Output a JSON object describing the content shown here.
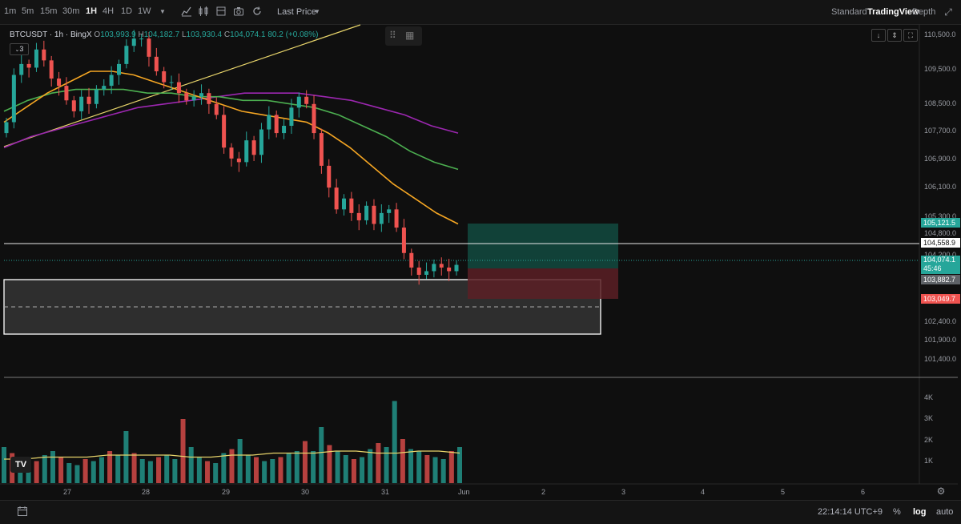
{
  "toolbar": {
    "timeframes": [
      "1m",
      "5m",
      "15m",
      "30m",
      "1H",
      "4H",
      "1D",
      "1W"
    ],
    "active_timeframe": "1H",
    "price_mode": "Last Price",
    "views": {
      "standard": "Standard",
      "tradingview": "TradingView",
      "depth": "Depth"
    }
  },
  "legend": {
    "symbol": "BTCUSDT · 1h · BingX",
    "open_key": "O",
    "open": "103,993.9",
    "high_key": "H",
    "high": "104,182.7",
    "low_key": "L",
    "low": "103,930.4",
    "close_key": "C",
    "close": "104,074.1",
    "change": "80.2 (+0.08%)",
    "indicator_count": "3"
  },
  "price_axis": {
    "labels": [
      "110,500.0",
      "109,500.0",
      "108,500.0",
      "107,700.0",
      "106,900.0",
      "106,100.0",
      "105,300.0",
      "104,800.0",
      "104,200.0",
      "102,400.0",
      "101,900.0",
      "101,400.0"
    ]
  },
  "price_tags": {
    "target": "105,121.5",
    "level": "104,558.9",
    "last": "104,074.1",
    "countdown": "45:46",
    "entry": "103,882.7",
    "stop": "103,049.7"
  },
  "volume_axis": {
    "labels": [
      "4K",
      "3K",
      "2K",
      "1K"
    ]
  },
  "time_axis": {
    "labels": [
      "27",
      "28",
      "29",
      "30",
      "31",
      "Jun",
      "2",
      "3",
      "4",
      "5",
      "6"
    ]
  },
  "bottom_bar": {
    "clock": "22:14:14 UTC+9",
    "percent": "%",
    "log": "log",
    "auto": "auto"
  },
  "colors": {
    "up": "#26a69a",
    "down": "#ef5350",
    "background": "#0f0f0f",
    "ma_fast": "#f5a623",
    "ma_mid": "#4caf50",
    "ma_slow": "#9c27b0",
    "trendline": "#e6d36a"
  },
  "chart_data": {
    "type": "candlestick",
    "symbol": "BTCUSDT",
    "interval": "1h",
    "price_range": [
      101000,
      110700
    ],
    "trendline": {
      "from": {
        "day": "26",
        "price": 107400
      },
      "to": {
        "day": "29.7",
        "price": 110700
      }
    },
    "horizontal_line": 104558.9,
    "demand_zone": {
      "top": 103950,
      "bottom": 102050,
      "mid": 103000
    },
    "position": {
      "entry": 103882.7,
      "target": 105121.5,
      "stop": 103049.7
    },
    "close_series": [
      108000,
      109300,
      109600,
      109500,
      110000,
      109700,
      109200,
      109000,
      108600,
      108300,
      108700,
      108500,
      108900,
      109000,
      109300,
      109600,
      110100,
      110300,
      110300,
      109800,
      109400,
      109100,
      109100,
      108800,
      108600,
      108700,
      108800,
      108500,
      108200,
      107300,
      107000,
      106900,
      107500,
      107100,
      107800,
      108200,
      107700,
      107900,
      108400,
      108700,
      108500,
      107700,
      106800,
      106200,
      105600,
      105900,
      105500,
      105300,
      105700,
      105200,
      105500,
      105600,
      105100,
      104400,
      104000,
      103800,
      103900,
      104100,
      104000,
      103900,
      104074
    ],
    "ma_fast": [
      108000,
      108400,
      108800,
      109100,
      109400,
      109400,
      109300,
      109100,
      108900,
      108700,
      108500,
      108300,
      108200,
      108100,
      108000,
      107700,
      107300,
      106800,
      106300,
      105900,
      105500,
      105200
    ],
    "ma_mid": [
      108300,
      108600,
      108800,
      108900,
      108900,
      108900,
      108800,
      108800,
      108700,
      108700,
      108600,
      108600,
      108500,
      108400,
      108200,
      107900,
      107600,
      107200,
      106900,
      106700
    ],
    "ma_slow": [
      107300,
      107600,
      107800,
      108000,
      108200,
      108400,
      108500,
      108600,
      108700,
      108800,
      108800,
      108800,
      108700,
      108600,
      108400,
      108200,
      107900,
      107700
    ],
    "volume": [
      1800,
      1500,
      1200,
      1300,
      1100,
      1400,
      1600,
      1300,
      1000,
      900,
      1200,
      1100,
      1300,
      1600,
      1400,
      2600,
      1500,
      1200,
      1100,
      1300,
      1400,
      1200,
      3200,
      1800,
      1300,
      1100,
      1000,
      1500,
      1700,
      2200,
      1400,
      1300,
      1100,
      1200,
      1300,
      1500,
      1600,
      2100,
      1600,
      2800,
      1900,
      1600,
      1400,
      1200,
      1300,
      1700,
      2000,
      1800,
      4100,
      2200,
      1700,
      1600,
      1400,
      1300,
      1200,
      1600,
      1800
    ],
    "volume_ma": [
      1200,
      1200,
      1300,
      1300,
      1300,
      1400,
      1400,
      1400,
      1400,
      1300,
      1300,
      1400,
      1400,
      1500,
      1500,
      1500,
      1600,
      1600,
      1500,
      1500,
      1600,
      1600,
      1500
    ]
  }
}
